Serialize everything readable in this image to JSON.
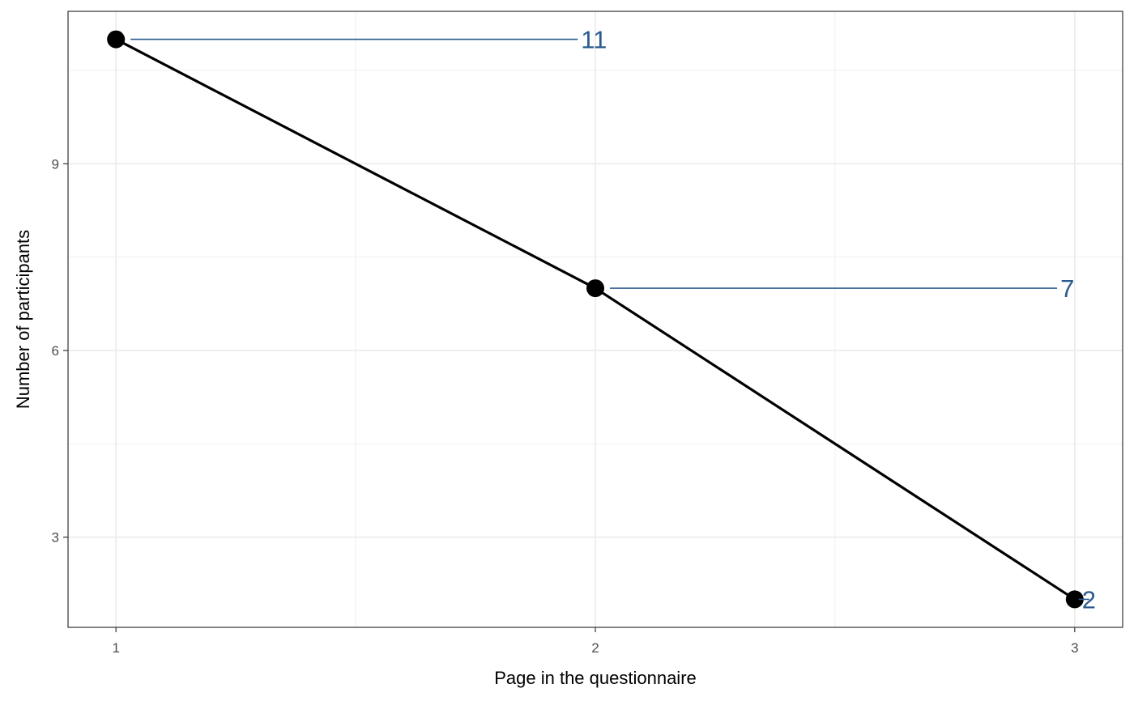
{
  "chart_data": {
    "type": "line",
    "xlabel": "Page in the questionnaire",
    "ylabel": "Number of participants",
    "x": [
      1,
      2,
      3
    ],
    "series": [
      {
        "values": [
          11,
          7,
          2
        ]
      }
    ],
    "data_labels": [
      "11",
      "7",
      "2"
    ],
    "xticks": [
      1,
      2,
      3
    ],
    "xtick_labels": [
      "1",
      "2",
      "3"
    ],
    "yticks": [
      3,
      6,
      9
    ],
    "ytick_labels": [
      "3",
      "6",
      "9"
    ],
    "xlim": [
      0.9,
      3.1
    ],
    "ylim": [
      1.55,
      11.45
    ],
    "grid": true,
    "colors": {
      "line": "#000000",
      "point": "#000000",
      "label": "#2b5b8e",
      "grid": "#ebebeb",
      "panel_border": "#333333"
    }
  }
}
